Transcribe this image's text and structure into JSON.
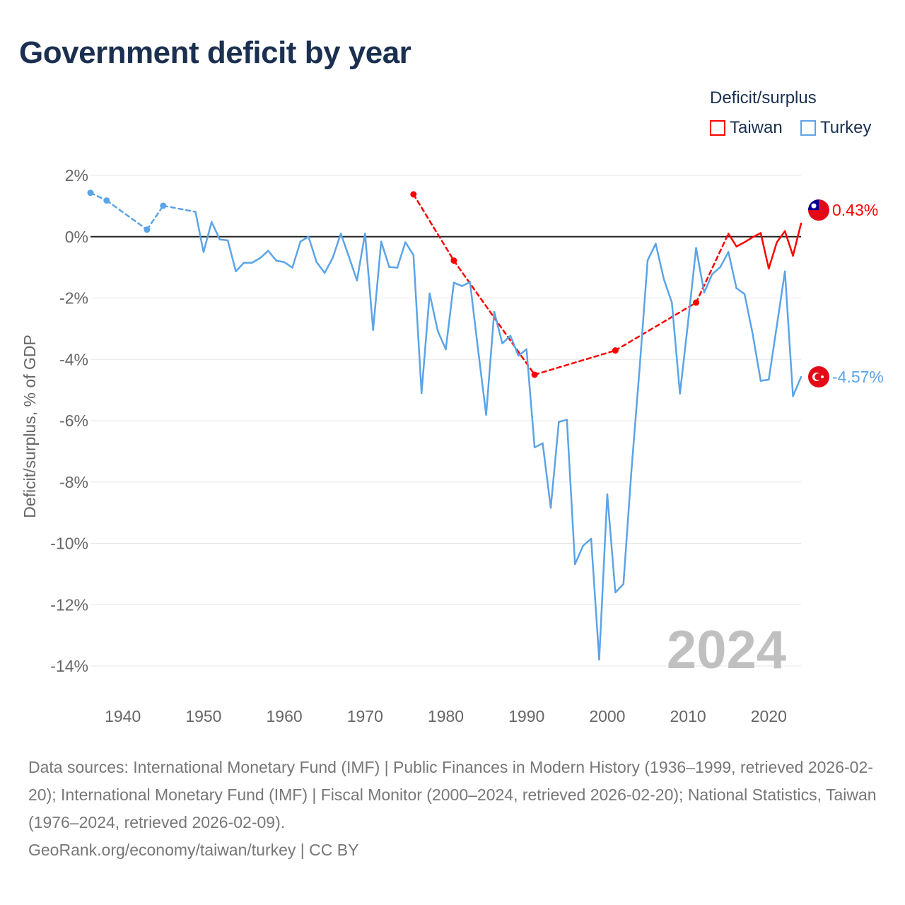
{
  "title": "Government deficit by year",
  "legend": {
    "title": "Deficit/surplus",
    "items": [
      {
        "label": "Taiwan",
        "color": "#ff0000"
      },
      {
        "label": "Turkey",
        "color": "#5ba4e8"
      }
    ]
  },
  "big_year": "2024",
  "sources": "Data sources: International Monetary Fund (IMF) | Public Finances in Modern History (1936–1999, retrieved 2026-02-20); International Monetary Fund (IMF) | Fiscal Monitor (2000–2024, retrieved 2026-02-20); National Statistics, Taiwan (1976–2024, retrieved 2026-02-09).",
  "attribution": "GeoRank.org/economy/taiwan/turkey | CC BY",
  "chart_data": {
    "type": "line",
    "title": "Government deficit by year",
    "xlabel": "",
    "ylabel": "Deficit/surplus, % of GDP",
    "xlim": [
      1936,
      2024
    ],
    "ylim": [
      -14,
      2
    ],
    "x_ticks": [
      1940,
      1950,
      1960,
      1970,
      1980,
      1990,
      2000,
      2010,
      2020
    ],
    "y_ticks": [
      2,
      0,
      -2,
      -4,
      -6,
      -8,
      -10,
      -12,
      -14
    ],
    "y_tick_labels": [
      "2%",
      "0%",
      "-2%",
      "-4%",
      "-6%",
      "-8%",
      "-10%",
      "-12%",
      "-14%"
    ],
    "grid": true,
    "legend_position": "top-right",
    "series": [
      {
        "name": "Taiwan",
        "color": "#ff0000",
        "end_label": "0.43%",
        "x": [
          1976,
          1981,
          1991,
          2001,
          2011,
          2015,
          2016,
          2017,
          2018,
          2019,
          2020,
          2021,
          2022,
          2023,
          2024
        ],
        "y": [
          1.38,
          -0.78,
          -4.5,
          -3.71,
          -2.15,
          0.1,
          -0.32,
          -0.18,
          -0.02,
          0.12,
          -1.04,
          -0.18,
          0.18,
          -0.62,
          0.43
        ]
      },
      {
        "name": "Turkey",
        "color": "#5ba4e8",
        "end_label": "-4.57%",
        "x": [
          1936,
          1938,
          1943,
          1945,
          1949,
          1950,
          1951,
          1952,
          1953,
          1954,
          1955,
          1956,
          1957,
          1958,
          1959,
          1960,
          1961,
          1962,
          1963,
          1964,
          1965,
          1966,
          1967,
          1968,
          1969,
          1970,
          1971,
          1972,
          1973,
          1974,
          1975,
          1976,
          1977,
          1978,
          1979,
          1980,
          1981,
          1982,
          1983,
          1984,
          1985,
          1986,
          1987,
          1988,
          1989,
          1990,
          1991,
          1992,
          1993,
          1994,
          1995,
          1996,
          1997,
          1998,
          1999,
          2000,
          2001,
          2002,
          2003,
          2004,
          2005,
          2006,
          2007,
          2008,
          2009,
          2010,
          2011,
          2012,
          2013,
          2014,
          2015,
          2016,
          2017,
          2018,
          2019,
          2020,
          2021,
          2022,
          2023,
          2024
        ],
        "y": [
          1.43,
          1.18,
          0.23,
          1.01,
          0.81,
          -0.5,
          0.48,
          -0.09,
          -0.12,
          -1.13,
          -0.85,
          -0.85,
          -0.7,
          -0.46,
          -0.78,
          -0.83,
          -1.01,
          -0.16,
          0,
          -0.83,
          -1.18,
          -0.69,
          0.1,
          -0.65,
          -1.43,
          0.1,
          -3.04,
          -0.16,
          -0.99,
          -1.01,
          -0.18,
          -0.6,
          -5.1,
          -1.85,
          -3.07,
          -3.67,
          -1.5,
          -1.61,
          -1.48,
          -3.69,
          -5.81,
          -2.45,
          -3.48,
          -3.23,
          -3.88,
          -3.67,
          -6.87,
          -6.74,
          -8.84,
          -6.04,
          -5.97,
          -10.68,
          -10.08,
          -9.85,
          -13.79,
          -8.4,
          -11.6,
          -11.33,
          -7.6,
          -4.3,
          -0.77,
          -0.23,
          -1.38,
          -2.15,
          -5.12,
          -2.8,
          -0.37,
          -1.82,
          -1.22,
          -0.99,
          -0.5,
          -1.68,
          -1.87,
          -3.16,
          -4.7,
          -4.66,
          -2.9,
          -1.13,
          -5.2,
          -4.57
        ]
      }
    ]
  }
}
